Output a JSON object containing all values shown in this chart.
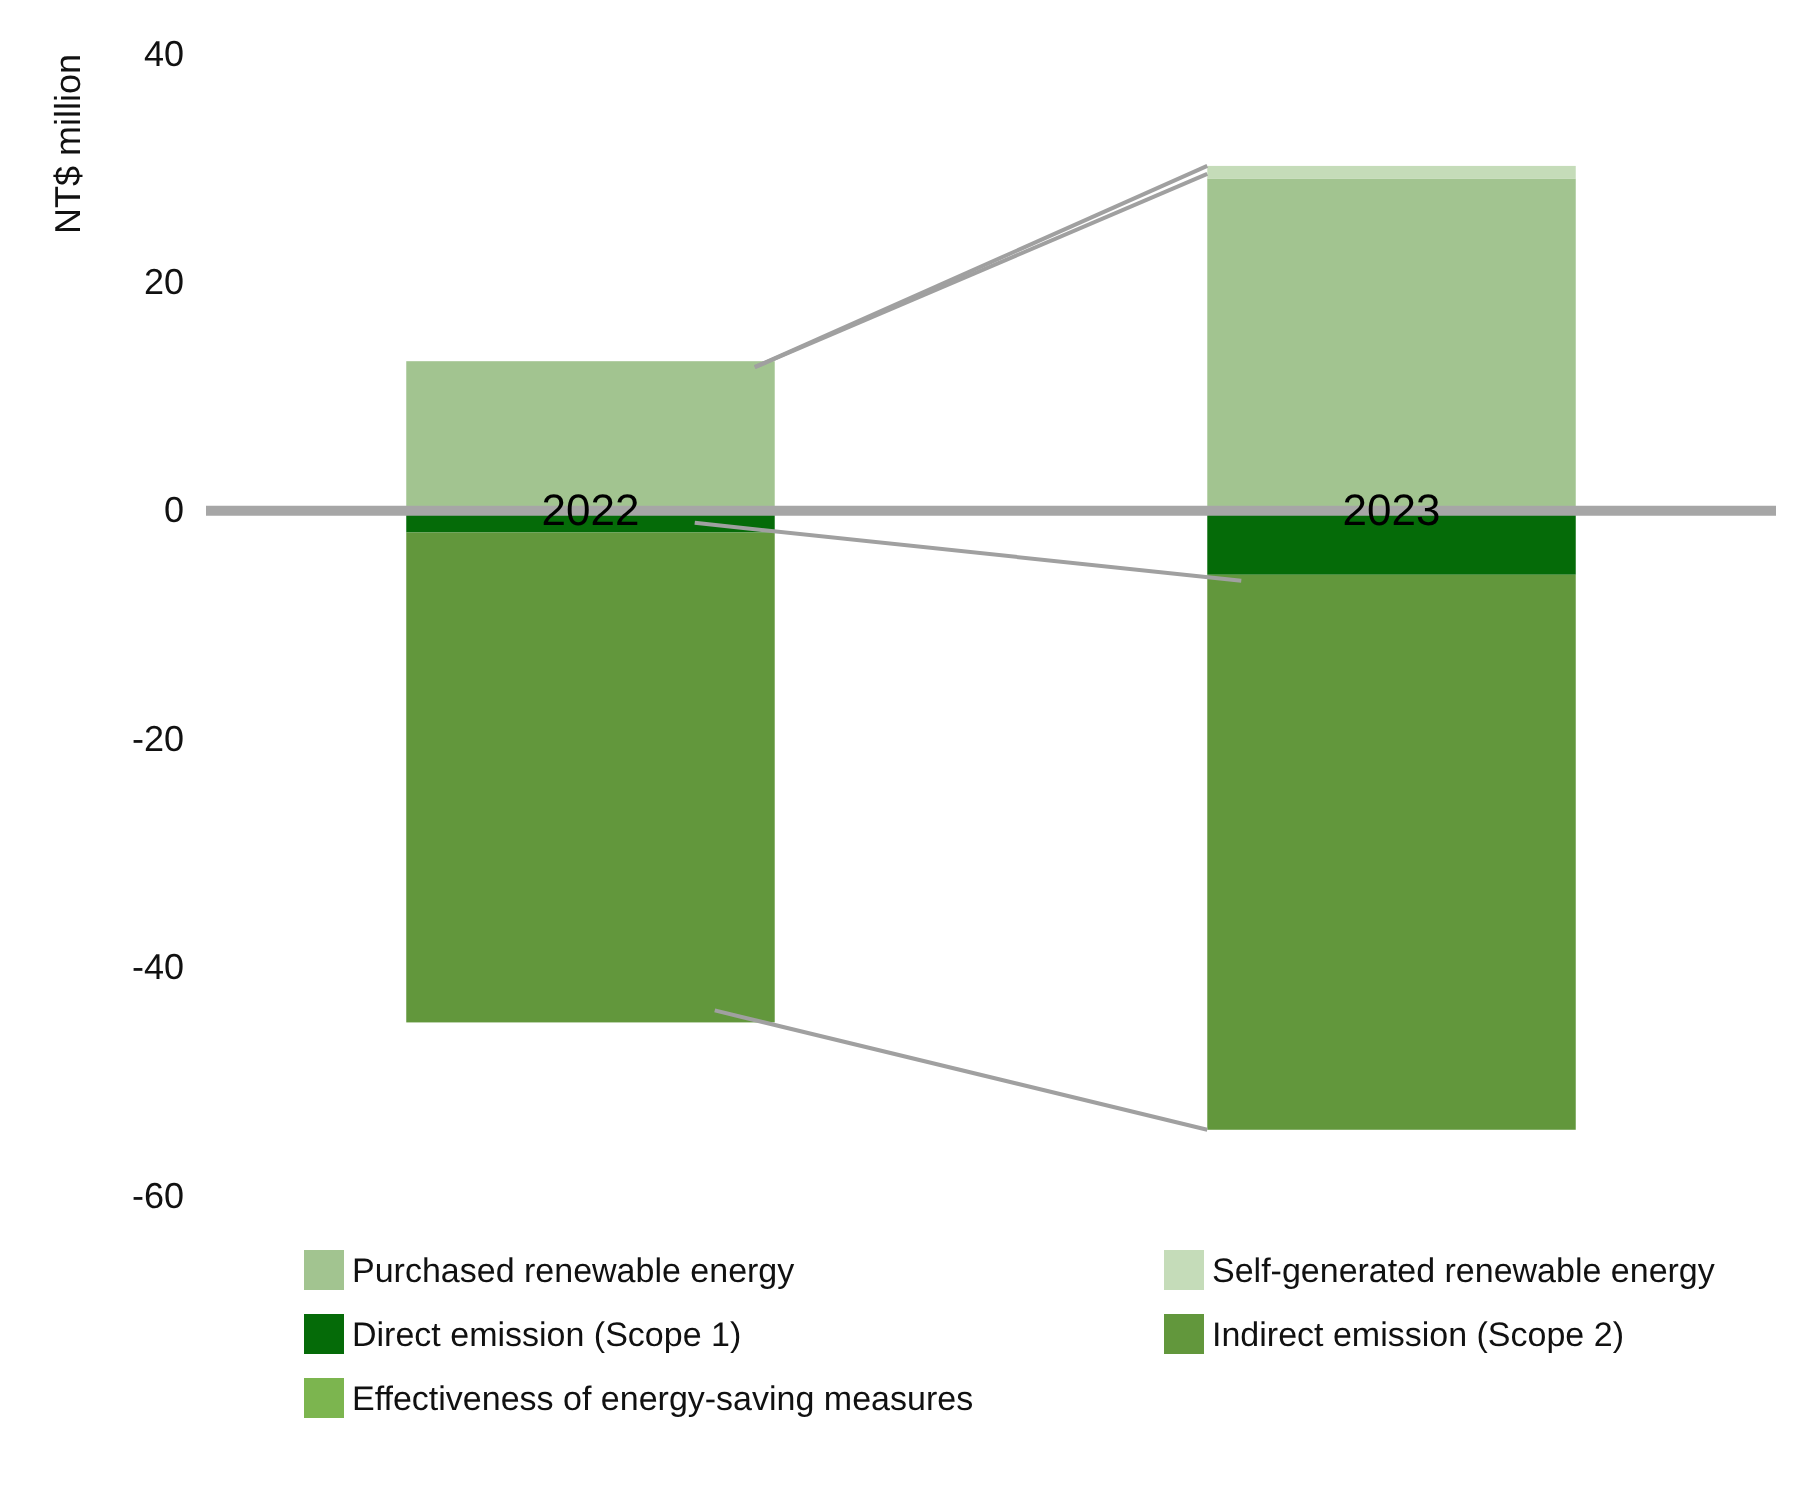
{
  "chart_data": {
    "type": "bar",
    "stacked": true,
    "ylabel": "NT$ million",
    "categories": [
      "2022",
      "2023"
    ],
    "ylim": [
      -60,
      40
    ],
    "yticks": [
      -60,
      -40,
      -20,
      0,
      20,
      40
    ],
    "grid": false,
    "legend": "bottom",
    "series": [
      {
        "name": "Purchased renewable energy",
        "color": "#a2c490",
        "values": [
          13.1,
          29.1
        ]
      },
      {
        "name": "Self-generated renewable energy",
        "color": "#c5dcb9",
        "values": [
          0,
          1.1
        ]
      },
      {
        "name": "Direct emission (Scope 1)",
        "color": "#056b08",
        "values": [
          -1.9,
          -5.6
        ]
      },
      {
        "name": "Indirect emission (Scope 2)",
        "color": "#62973c",
        "values": [
          -42.9,
          -48.6
        ]
      },
      {
        "name": "Effectiveness of energy-saving measures",
        "color": "#7cb54f",
        "values": [
          0,
          0
        ]
      }
    ]
  }
}
